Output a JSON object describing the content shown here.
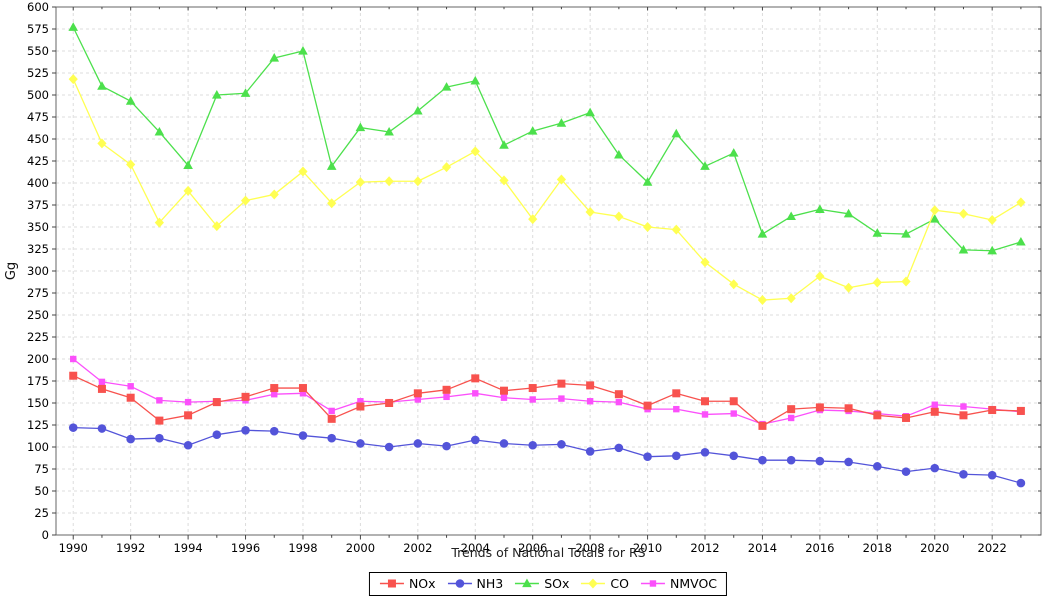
{
  "chart_data": {
    "type": "line",
    "title": "Trends of National Totals for RS",
    "xlabel": "",
    "ylabel": "Gg",
    "x": [
      1990,
      1991,
      1992,
      1993,
      1994,
      1995,
      1996,
      1997,
      1998,
      1999,
      2000,
      2001,
      2002,
      2003,
      2004,
      2005,
      2006,
      2007,
      2008,
      2009,
      2010,
      2011,
      2012,
      2013,
      2014,
      2015,
      2016,
      2017,
      2018,
      2019,
      2020,
      2021,
      2022,
      2023
    ],
    "series": [
      {
        "name": "NOx",
        "marker": "square",
        "color": "#f8524e",
        "values": [
          181,
          166,
          156,
          130,
          136,
          151,
          157,
          167,
          167,
          132,
          146,
          150,
          161,
          165,
          178,
          164,
          167,
          172,
          170,
          160,
          147,
          161,
          152,
          152,
          124,
          143,
          145,
          144,
          136,
          133,
          140,
          136,
          142,
          141
        ]
      },
      {
        "name": "NH3",
        "marker": "circle",
        "color": "#5354d9",
        "values": [
          122,
          121,
          109,
          110,
          102,
          114,
          119,
          118,
          113,
          110,
          104,
          100,
          104,
          101,
          108,
          104,
          102,
          103,
          95,
          99,
          89,
          90,
          94,
          90,
          85,
          85,
          84,
          83,
          78,
          72,
          76,
          69,
          68,
          59
        ]
      },
      {
        "name": "SOx",
        "marker": "triangle",
        "color": "#4ce04c",
        "values": [
          577,
          510,
          493,
          458,
          420,
          500,
          502,
          542,
          550,
          419,
          463,
          458,
          482,
          509,
          516,
          443,
          459,
          468,
          480,
          432,
          401,
          456,
          419,
          434,
          342,
          362,
          370,
          365,
          343,
          342,
          359,
          324,
          323,
          333
        ]
      },
      {
        "name": "CO",
        "marker": "diamond",
        "color": "#ffff52",
        "values": [
          518,
          445,
          421,
          355,
          391,
          351,
          380,
          387,
          413,
          377,
          401,
          402,
          402,
          418,
          436,
          403,
          359,
          404,
          367,
          362,
          350,
          347,
          310,
          285,
          267,
          269,
          294,
          281,
          287,
          288,
          369,
          365,
          358,
          378
        ]
      },
      {
        "name": "NMVOC",
        "marker": "square-small",
        "color": "#fb50fb",
        "values": [
          200,
          174,
          169,
          153,
          151,
          152,
          153,
          160,
          161,
          141,
          152,
          151,
          154,
          157,
          161,
          156,
          154,
          155,
          152,
          151,
          143,
          143,
          137,
          138,
          126,
          133,
          142,
          141,
          138,
          135,
          148,
          146,
          143,
          140
        ]
      }
    ],
    "ylim": [
      0,
      600
    ],
    "xlim": [
      1989.4,
      2023.7
    ],
    "yticks": [
      0,
      25,
      50,
      75,
      100,
      125,
      150,
      175,
      200,
      225,
      250,
      275,
      300,
      325,
      350,
      375,
      400,
      425,
      450,
      475,
      500,
      525,
      550,
      575,
      600
    ],
    "xticks": [
      1990,
      1992,
      1994,
      1996,
      1998,
      2000,
      2002,
      2004,
      2006,
      2008,
      2010,
      2012,
      2014,
      2016,
      2018,
      2020,
      2022
    ],
    "grid": true,
    "grid_style": "dashed",
    "legend_position": "bottom-center"
  }
}
